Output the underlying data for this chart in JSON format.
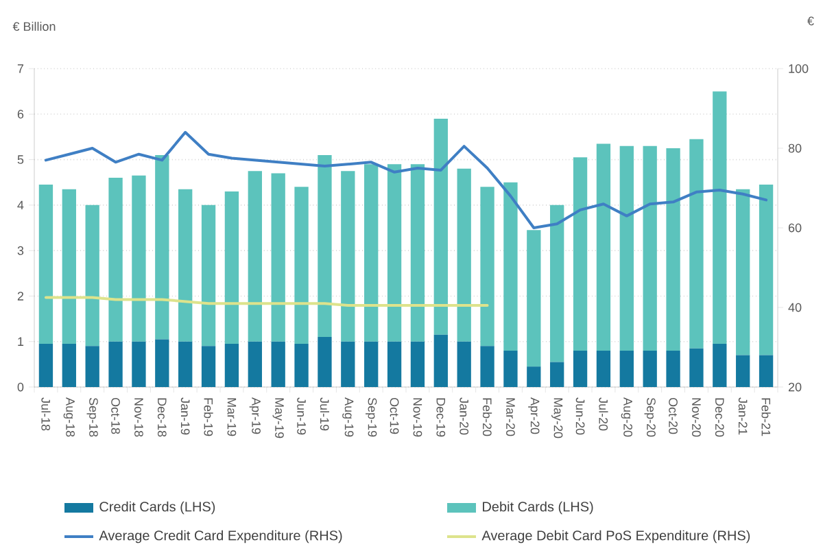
{
  "chart_data": {
    "type": "bar",
    "stacked": true,
    "categories": [
      "Jul-18",
      "Aug-18",
      "Sep-18",
      "Oct-18",
      "Nov-18",
      "Dec-18",
      "Jan-19",
      "Feb-19",
      "Mar-19",
      "Apr-19",
      "May-19",
      "Jun-19",
      "Jul-19",
      "Aug-19",
      "Sep-19",
      "Oct-19",
      "Nov-19",
      "Dec-19",
      "Jan-20",
      "Feb-20",
      "Mar-20",
      "Apr-20",
      "May-20",
      "Jun-20",
      "Jul-20",
      "Aug-20",
      "Sep-20",
      "Oct-20",
      "Nov-20",
      "Dec-20",
      "Jan-21",
      "Feb-21"
    ],
    "series": [
      {
        "name": "Credit Cards (LHS)",
        "axis": "y",
        "color": "#1479a0",
        "values": [
          0.95,
          0.95,
          0.9,
          1.0,
          1.0,
          1.05,
          1.0,
          0.9,
          0.95,
          1.0,
          1.0,
          0.95,
          1.1,
          1.0,
          1.0,
          1.0,
          1.0,
          1.15,
          1.0,
          0.9,
          0.8,
          0.45,
          0.55,
          0.8,
          0.8,
          0.8,
          0.8,
          0.8,
          0.85,
          0.95,
          0.7,
          0.7
        ]
      },
      {
        "name": "Debit Cards (LHS)",
        "axis": "y",
        "color": "#5cc3bc",
        "values": [
          3.5,
          3.4,
          3.1,
          3.6,
          3.65,
          4.05,
          3.35,
          3.1,
          3.35,
          3.75,
          3.7,
          3.45,
          4.0,
          3.75,
          3.9,
          3.9,
          3.9,
          4.75,
          3.8,
          3.5,
          3.7,
          3.0,
          3.45,
          4.25,
          4.55,
          4.5,
          4.5,
          4.45,
          4.6,
          5.55,
          3.65,
          3.75
        ]
      },
      {
        "name": "Average Credit Card Expenditure (RHS)",
        "type": "line",
        "axis": "y2",
        "color": "#3f7fc4",
        "values": [
          77,
          78.5,
          80,
          76.5,
          78.5,
          77,
          84,
          78.5,
          77.5,
          77,
          76.5,
          76,
          75.5,
          76,
          76.5,
          74,
          75,
          74.5,
          80.5,
          75,
          68,
          60,
          61,
          64.5,
          66,
          63,
          66,
          66.5,
          69,
          69.5,
          68.5,
          67
        ]
      },
      {
        "name": "Average Debit Card PoS Expenditure (RHS)",
        "type": "line",
        "axis": "y2",
        "color": "#dde38c",
        "values": [
          42.5,
          42.5,
          42.5,
          42,
          42,
          42,
          41.5,
          41,
          41,
          41,
          41,
          41,
          41,
          40.5,
          40.5,
          40.5,
          40.5,
          40.5,
          40.5,
          40.5,
          null,
          null,
          null,
          null,
          null,
          null,
          null,
          null,
          null,
          null,
          null,
          null
        ]
      }
    ],
    "ylabel": "€ Billion",
    "y2label": "€",
    "ylim": [
      0,
      7
    ],
    "yticks": [
      0,
      1,
      2,
      3,
      4,
      5,
      6,
      7
    ],
    "y2lim": [
      20,
      100
    ],
    "y2ticks": [
      20,
      40,
      60,
      80,
      100
    ],
    "grid": "y",
    "legend": "bottom"
  }
}
